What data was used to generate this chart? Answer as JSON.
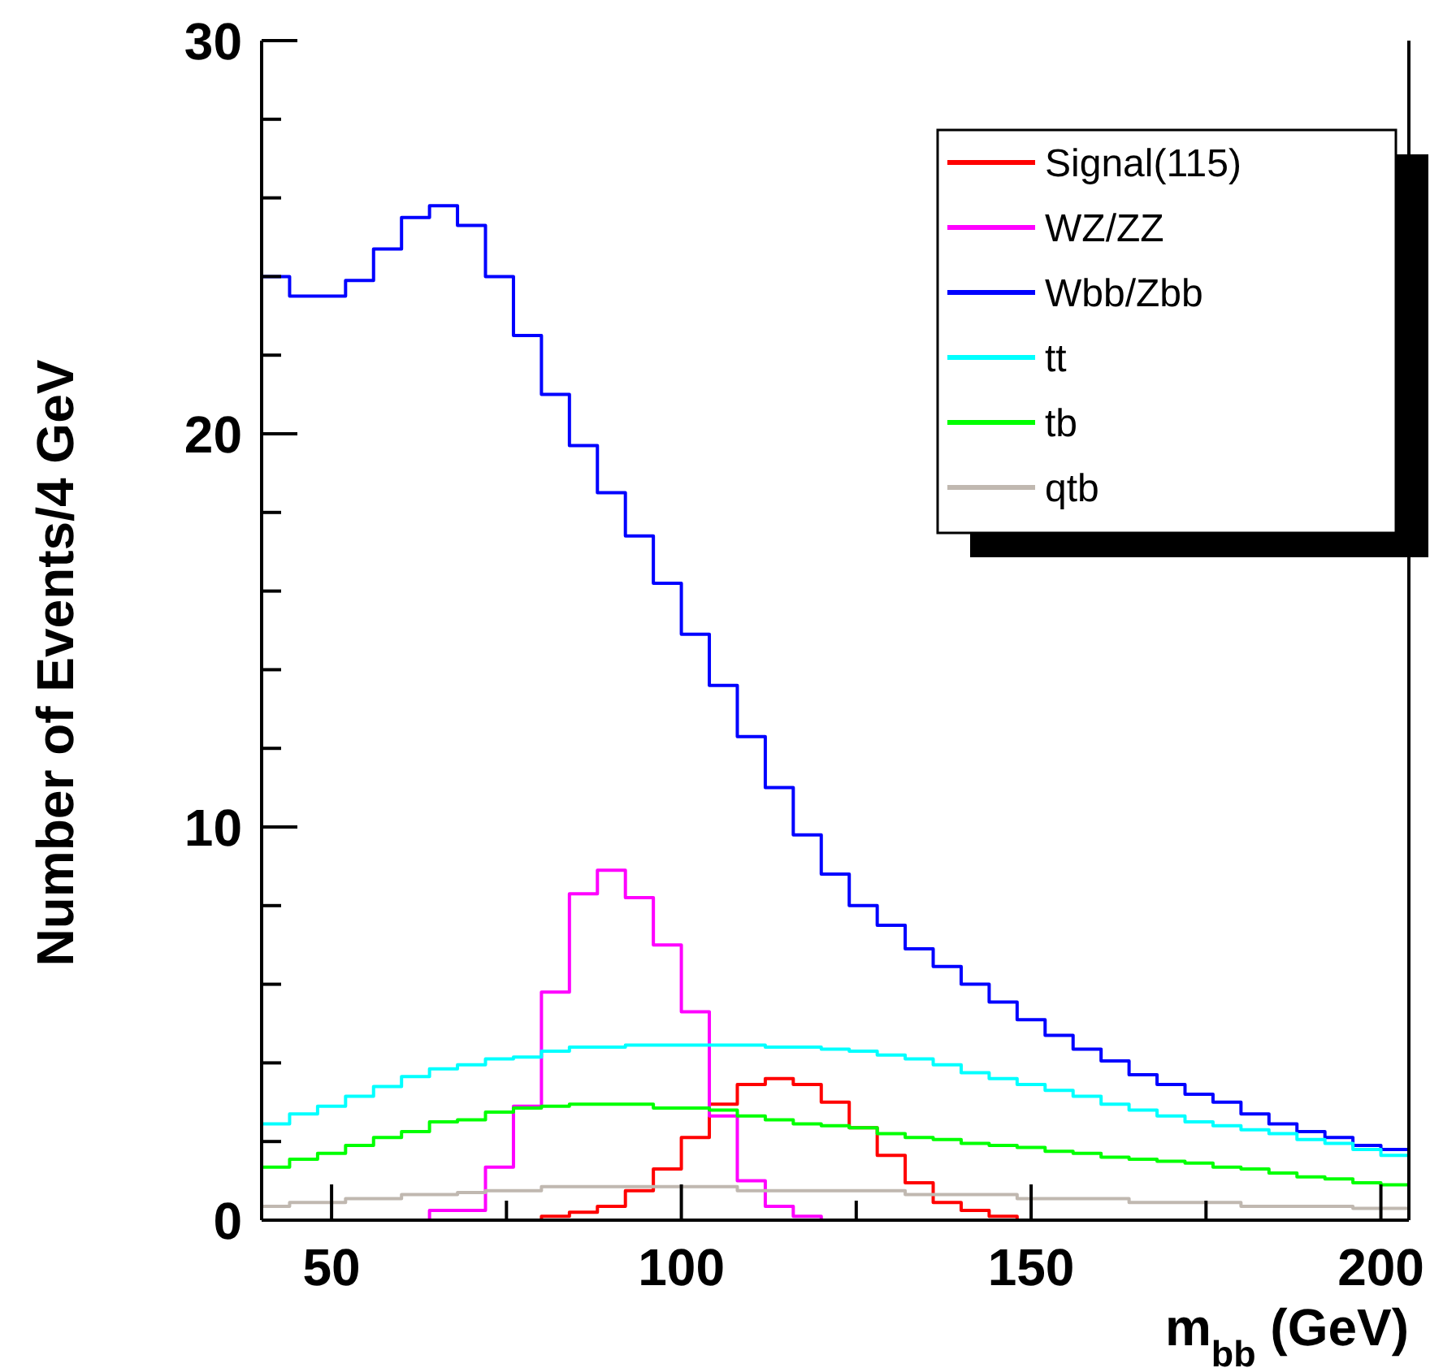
{
  "chart_data": {
    "type": "histogram",
    "xlabel": "m$_{bb}$ (GeV)",
    "ylabel": "Number of Events/4 GeV",
    "bins": [
      40,
      44,
      48,
      52,
      56,
      60,
      64,
      68,
      72,
      76,
      80,
      84,
      88,
      92,
      96,
      100,
      104,
      108,
      112,
      116,
      120,
      124,
      128,
      132,
      136,
      140,
      144,
      148,
      152,
      156,
      160,
      164,
      168,
      172,
      176,
      180,
      184,
      188,
      192,
      196,
      200,
      204
    ],
    "series": [
      {
        "name": "Signal(115)",
        "color": "#ff0000",
        "values": [
          0,
          0,
          0,
          0,
          0,
          0,
          0,
          0,
          0,
          0,
          0.1,
          0.2,
          0.35,
          0.75,
          1.3,
          2.1,
          2.95,
          3.45,
          3.6,
          3.45,
          3.0,
          2.35,
          1.65,
          0.95,
          0.45,
          0.25,
          0.1,
          0,
          0,
          0,
          0,
          0,
          0,
          0,
          0,
          0,
          0,
          0,
          0,
          0,
          0
        ]
      },
      {
        "name": "WZ/ZZ",
        "color": "#ff00ff",
        "values": [
          0,
          0,
          0,
          0,
          0,
          0,
          0.25,
          0.25,
          1.35,
          2.9,
          5.8,
          8.3,
          8.9,
          8.2,
          7.0,
          5.3,
          2.65,
          1.0,
          0.35,
          0.1,
          0,
          0,
          0,
          0,
          0,
          0,
          0,
          0,
          0,
          0,
          0,
          0,
          0,
          0,
          0,
          0,
          0,
          0,
          0,
          0,
          0
        ]
      },
      {
        "name": "Wbb/Zbb",
        "color": "#0000ff",
        "values": [
          24.0,
          23.5,
          23.5,
          23.9,
          24.7,
          25.5,
          25.8,
          25.3,
          24.0,
          22.5,
          21.0,
          19.7,
          18.5,
          17.4,
          16.2,
          14.9,
          13.6,
          12.3,
          11.0,
          9.8,
          8.8,
          8.0,
          7.5,
          6.9,
          6.45,
          6.0,
          5.55,
          5.1,
          4.7,
          4.35,
          4.05,
          3.7,
          3.45,
          3.2,
          3.0,
          2.7,
          2.45,
          2.25,
          2.1,
          1.9,
          1.8
        ]
      },
      {
        "name": "tt",
        "color": "#00ffff",
        "values": [
          2.45,
          2.7,
          2.9,
          3.15,
          3.4,
          3.65,
          3.85,
          3.95,
          4.1,
          4.15,
          4.3,
          4.4,
          4.4,
          4.45,
          4.45,
          4.45,
          4.45,
          4.45,
          4.4,
          4.4,
          4.35,
          4.3,
          4.2,
          4.1,
          3.95,
          3.75,
          3.6,
          3.45,
          3.3,
          3.15,
          2.95,
          2.8,
          2.65,
          2.5,
          2.4,
          2.3,
          2.2,
          2.05,
          1.95,
          1.8,
          1.65
        ]
      },
      {
        "name": "tb",
        "color": "#00ff00",
        "values": [
          1.35,
          1.55,
          1.7,
          1.9,
          2.1,
          2.25,
          2.5,
          2.55,
          2.75,
          2.85,
          2.9,
          2.95,
          2.95,
          2.95,
          2.85,
          2.85,
          2.8,
          2.65,
          2.55,
          2.45,
          2.4,
          2.35,
          2.2,
          2.1,
          2.05,
          1.95,
          1.9,
          1.85,
          1.75,
          1.7,
          1.6,
          1.55,
          1.5,
          1.45,
          1.35,
          1.3,
          1.2,
          1.1,
          1.05,
          0.95,
          0.9
        ]
      },
      {
        "name": "qtb",
        "color": "#c0b8b0",
        "values": [
          0.35,
          0.45,
          0.45,
          0.55,
          0.55,
          0.65,
          0.65,
          0.7,
          0.75,
          0.75,
          0.85,
          0.85,
          0.85,
          0.85,
          0.85,
          0.85,
          0.85,
          0.75,
          0.75,
          0.75,
          0.75,
          0.75,
          0.75,
          0.65,
          0.65,
          0.65,
          0.65,
          0.55,
          0.55,
          0.55,
          0.55,
          0.45,
          0.45,
          0.45,
          0.45,
          0.35,
          0.35,
          0.35,
          0.35,
          0.3,
          0.3
        ]
      }
    ],
    "xlim": [
      40,
      204
    ],
    "xticks": [
      50,
      {
        "value": 75,
        "label": null
      },
      100,
      {
        "value": 125,
        "label": null
      },
      150,
      {
        "value": 175,
        "label": null
      },
      200
    ],
    "ylim": [
      0,
      30
    ],
    "yticks": [
      0,
      {
        "value": 2,
        "label": null
      },
      {
        "value": 4,
        "label": null
      },
      {
        "value": 6,
        "label": null
      },
      {
        "value": 8,
        "label": null
      },
      10,
      {
        "value": 12,
        "label": null
      },
      {
        "value": 14,
        "label": null
      },
      {
        "value": 16,
        "label": null
      },
      {
        "value": 18,
        "label": null
      },
      20,
      {
        "value": 22,
        "label": null
      },
      {
        "value": 24,
        "label": null
      },
      {
        "value": 26,
        "label": null
      },
      {
        "value": 28,
        "label": null
      },
      30
    ],
    "legend": "top right",
    "grid": false
  }
}
